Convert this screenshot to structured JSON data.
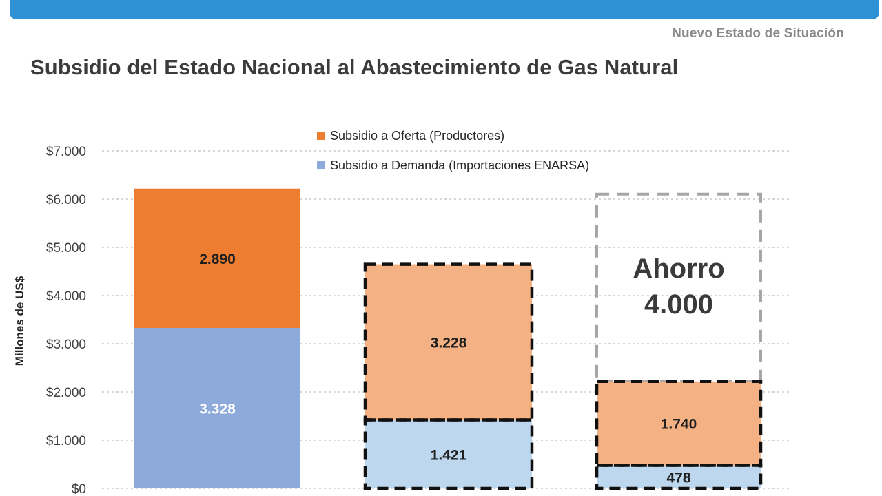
{
  "header": {
    "subtitle": "Nuevo Estado de Situación",
    "title": "Subsidio del Estado Nacional al Abastecimiento de Gas Natural"
  },
  "chart_data": {
    "type": "bar",
    "stacked": true,
    "title": "Subsidio del Estado Nacional al Abastecimiento de Gas Natural",
    "ylabel": "Millones de US$",
    "xlabel": "",
    "ylim": [
      0,
      7000
    ],
    "yticks": [
      "$0",
      "$1.000",
      "$2.000",
      "$3.000",
      "$4.000",
      "$5.000",
      "$6.000",
      "$7.000"
    ],
    "grid": true,
    "legend_position": "top-center",
    "categories": [
      "",
      "",
      ""
    ],
    "series": [
      {
        "name": "Subsidio a Demanda (Importaciones ENARSA)",
        "color": "#8eaadb",
        "values": [
          3328,
          1421,
          478
        ],
        "labels": [
          "3.328",
          "1.421",
          "478"
        ]
      },
      {
        "name": "Subsidio a Oferta (Productores)",
        "color": "#ed7d31",
        "values": [
          2890,
          3228,
          1740
        ],
        "labels": [
          "2.890",
          "3.228",
          "1.740"
        ]
      }
    ],
    "annotation": {
      "line1": "Ahorro",
      "line2": "4.000",
      "value": 4000
    },
    "colors": {
      "offer_solid": "#ed7d31",
      "demand_solid": "#8eaadb",
      "offer_projected": "#f4b183",
      "demand_projected": "#bdd7ee",
      "grid": "#c9c9c9",
      "savings_border": "#a6a6a6"
    }
  }
}
